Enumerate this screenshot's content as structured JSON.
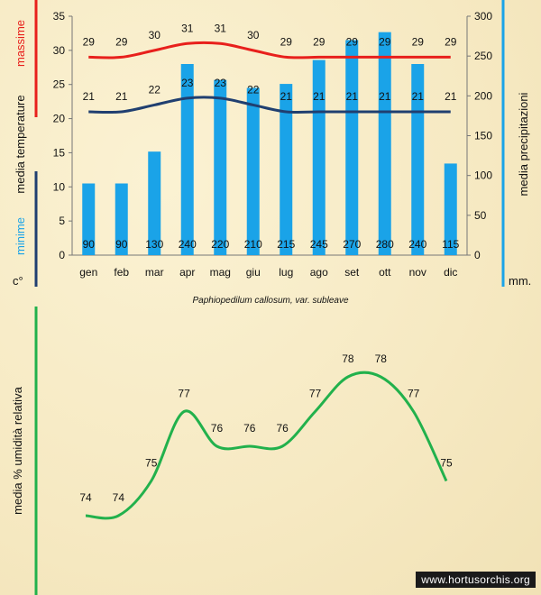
{
  "chart_data": [
    {
      "type": "bar+line",
      "categories": [
        "gen",
        "feb",
        "mar",
        "apr",
        "mag",
        "giu",
        "lug",
        "ago",
        "set",
        "ott",
        "nov",
        "dic"
      ],
      "precipitation": {
        "name": "media precipitazioni",
        "values": [
          90,
          90,
          130,
          240,
          220,
          210,
          215,
          245,
          270,
          280,
          240,
          115
        ],
        "axis_ticks": [
          0,
          50,
          100,
          150,
          200,
          250,
          300
        ],
        "ylim": [
          0,
          300
        ],
        "unit": "mm.",
        "color": "#1aa3e8"
      },
      "max_temp": {
        "name": "massime",
        "values": [
          29,
          29,
          30,
          31,
          31,
          30,
          29,
          29,
          29,
          29,
          29,
          29
        ],
        "color": "#e8201c"
      },
      "min_temp": {
        "name": "minime",
        "values": [
          21,
          21,
          22,
          23,
          23,
          22,
          21,
          21,
          21,
          21,
          21,
          21
        ],
        "color": "#203f70"
      },
      "temp_axis": {
        "ticks": [
          0,
          5,
          10,
          15,
          20,
          25,
          30,
          35
        ],
        "ylim": [
          0,
          35
        ],
        "unit": "c°"
      },
      "left_label": {
        "max": "massime",
        "middle": "media  temperature",
        "min": "minime"
      },
      "right_label": "media  precipitazioni",
      "caption": "Paphiopedilum callosum, var. subleave"
    },
    {
      "type": "line",
      "categories": [
        "gen",
        "feb",
        "mar",
        "apr",
        "mag",
        "giu",
        "lug",
        "ago",
        "set",
        "ott",
        "nov",
        "dic"
      ],
      "series": [
        {
          "name": "media % umidità relativa",
          "values": [
            74,
            74,
            75,
            77,
            76,
            76,
            76,
            77,
            78,
            78,
            77,
            75
          ]
        }
      ],
      "ylabel": "media %  umidità relativa",
      "color": "#22b14c"
    }
  ],
  "watermark": "www.hortusorchis.org"
}
